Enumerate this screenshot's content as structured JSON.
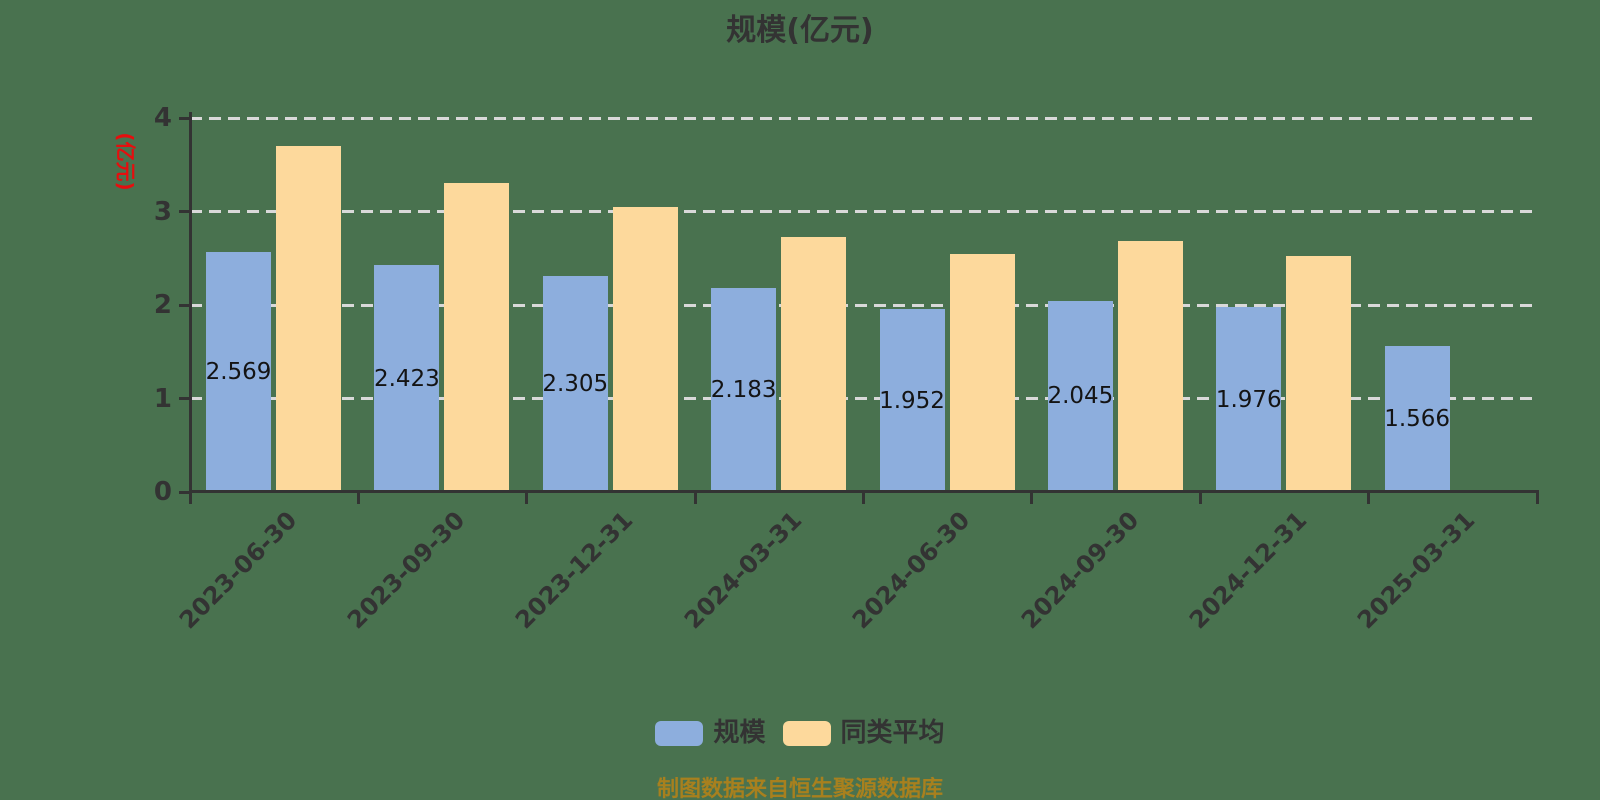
{
  "page": {
    "background_color": "#49724f"
  },
  "chart_data": {
    "type": "bar",
    "title": "规模(亿元)",
    "ylabel": "(亿元)",
    "ylabel_color": "#e60e0e",
    "xlabel": "",
    "categories": [
      "2023-06-30",
      "2023-09-30",
      "2023-12-31",
      "2024-03-31",
      "2024-06-30",
      "2024-09-30",
      "2024-12-31",
      "2025-03-31"
    ],
    "series": [
      {
        "name": "规模",
        "color": "#8daedd",
        "show_value_labels": true,
        "values": [
          2.569,
          2.423,
          2.305,
          2.183,
          1.952,
          2.045,
          1.976,
          1.566
        ]
      },
      {
        "name": "同类平均",
        "color": "#fdd99c",
        "show_value_labels": false,
        "values": [
          3.7,
          3.31,
          3.05,
          2.73,
          2.55,
          2.68,
          2.52,
          null
        ]
      }
    ],
    "ylim": [
      0,
      4
    ],
    "yticks": [
      0,
      1,
      2,
      3,
      4
    ],
    "grid": "horizontal-dashed",
    "gridline_color": "#d9d9d9",
    "axis_color": "#333333",
    "legend_position": "bottom",
    "footer": "制图数据来自恒生聚源数据库",
    "footer_color": "#a8801e"
  }
}
